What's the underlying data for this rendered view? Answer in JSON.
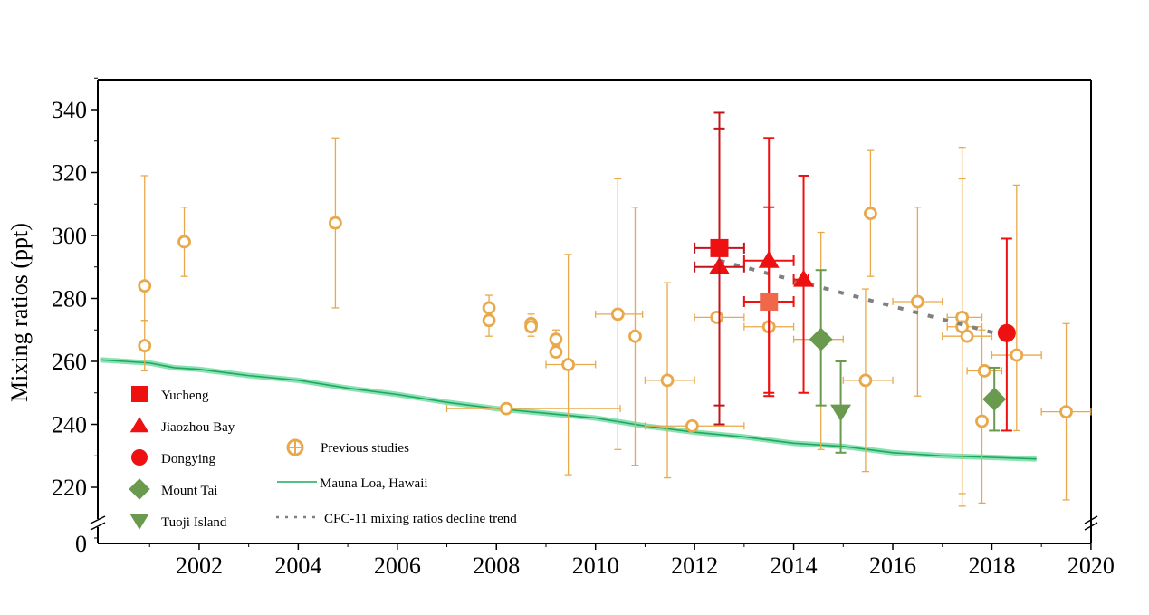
{
  "chart_data": {
    "type": "scatter",
    "title": "",
    "xlabel": "",
    "ylabel": "Mixing ratios (ppt)",
    "xlim": [
      2000,
      2020
    ],
    "ylim": [
      210,
      350
    ],
    "y_axis_break": {
      "lower_label": "0",
      "break_between": [
        0,
        210
      ]
    },
    "x_ticks": [
      2002,
      2004,
      2006,
      2008,
      2010,
      2012,
      2014,
      2016,
      2018,
      2020
    ],
    "y_ticks": [
      220,
      240,
      260,
      280,
      300,
      320,
      340
    ],
    "grid": false,
    "colors": {
      "previous": "#E9A94A",
      "previous_light": "#F3D49E",
      "red": "#EE1111",
      "dark_red": "#C0151B",
      "salmon": "#F0674A",
      "green": "#6A9A4E",
      "mauna_line": "#1FA85A",
      "mauna_band": "#6CD9A3",
      "trend": "#808080"
    },
    "legend": {
      "placement": "bottom-left",
      "items": [
        {
          "label": "Yucheng",
          "marker": "square",
          "color": "#EE1111"
        },
        {
          "label": "Jiaozhou Bay",
          "marker": "triangle-up",
          "color": "#EE1111"
        },
        {
          "label": "Dongying",
          "marker": "circle",
          "color": "#EE1111"
        },
        {
          "label": "Mount Tai",
          "marker": "diamond",
          "color": "#6A9A4E"
        },
        {
          "label": "Tuoji Island",
          "marker": "triangle-down",
          "color": "#6A9A4E"
        },
        {
          "label": "Previous studies",
          "marker": "circle-open-cross",
          "color": "#E9A94A"
        },
        {
          "label": "Mauna Loa, Hawaii",
          "marker": "line",
          "color": "#1FA85A"
        },
        {
          "label": "CFC-11 mixing ratios decline trend",
          "marker": "dotted-line",
          "color": "#808080"
        }
      ]
    },
    "series": [
      {
        "name": "Yucheng",
        "marker": "square",
        "points": [
          {
            "x": 2012.5,
            "y": 296,
            "ylo": 246,
            "yhi": 339,
            "xlo": 2012.0,
            "xhi": 2013.0,
            "color": "#EE1111"
          },
          {
            "x": 2013.5,
            "y": 279,
            "ylo": 250,
            "yhi": 309,
            "xlo": 2013.0,
            "xhi": 2014.0,
            "color": "#F0674A"
          }
        ]
      },
      {
        "name": "Jiaozhou Bay",
        "marker": "triangle-up",
        "points": [
          {
            "x": 2012.5,
            "y": 290,
            "ylo": 240,
            "yhi": 334,
            "xlo": 2012.0,
            "xhi": 2013.0
          },
          {
            "x": 2013.5,
            "y": 292,
            "ylo": 249,
            "yhi": 331,
            "xlo": 2013.0,
            "xhi": 2014.0
          },
          {
            "x": 2014.2,
            "y": 286,
            "ylo": 250,
            "yhi": 319,
            "xlo": 2014.0,
            "xhi": 2014.3
          }
        ]
      },
      {
        "name": "Dongying",
        "marker": "circle",
        "points": [
          {
            "x": 2018.3,
            "y": 269,
            "ylo": 238,
            "yhi": 299
          }
        ]
      },
      {
        "name": "Mount Tai",
        "marker": "diamond",
        "points": [
          {
            "x": 2014.55,
            "y": 267,
            "ylo": 246,
            "yhi": 289
          },
          {
            "x": 2018.05,
            "y": 248,
            "ylo": 238,
            "yhi": 258
          }
        ]
      },
      {
        "name": "Tuoji Island",
        "marker": "triangle-down",
        "points": [
          {
            "x": 2014.95,
            "y": 244,
            "ylo": 231,
            "yhi": 260
          }
        ]
      },
      {
        "name": "Previous studies",
        "marker": "circle-open",
        "points": [
          {
            "x": 2000.9,
            "y": 284,
            "ylo": 273,
            "yhi": 319
          },
          {
            "x": 2000.9,
            "y": 265,
            "ylo": 257,
            "yhi": 273
          },
          {
            "x": 2001.7,
            "y": 298,
            "ylo": 287,
            "yhi": 309
          },
          {
            "x": 2004.75,
            "y": 304,
            "ylo": 277,
            "yhi": 331
          },
          {
            "x": 2007.85,
            "y": 277,
            "ylo": 273,
            "yhi": 281
          },
          {
            "x": 2007.85,
            "y": 273,
            "ylo": 268,
            "yhi": 277
          },
          {
            "x": 2008.2,
            "y": 245,
            "xlo": 2007.0,
            "xhi": 2010.5
          },
          {
            "x": 2008.7,
            "y": 272,
            "ylo": 270,
            "yhi": 275
          },
          {
            "x": 2008.7,
            "y": 271,
            "ylo": 268,
            "yhi": 273
          },
          {
            "x": 2009.2,
            "y": 267,
            "ylo": 265,
            "yhi": 270
          },
          {
            "x": 2009.2,
            "y": 263
          },
          {
            "x": 2009.45,
            "y": 259,
            "ylo": 224,
            "yhi": 294,
            "xlo": 2009.0,
            "xhi": 2010.0
          },
          {
            "x": 2010.45,
            "y": 275,
            "ylo": 232,
            "yhi": 318,
            "xlo": 2010.0,
            "xhi": 2010.95
          },
          {
            "x": 2010.8,
            "y": 268,
            "ylo": 227,
            "yhi": 309
          },
          {
            "x": 2011.45,
            "y": 254,
            "ylo": 223,
            "yhi": 285,
            "xlo": 2011.0,
            "xhi": 2012.0
          },
          {
            "x": 2011.95,
            "y": 239.5,
            "xlo": 2011.0,
            "xhi": 2013.0
          },
          {
            "x": 2012.45,
            "y": 274,
            "xlo": 2012.0,
            "xhi": 2013.0
          },
          {
            "x": 2013.5,
            "y": 271,
            "xlo": 2013.0,
            "xhi": 2014.0
          },
          {
            "x": 2014.55,
            "y": 267,
            "ylo": 232,
            "yhi": 301,
            "xlo": 2014.0,
            "xhi": 2015.0
          },
          {
            "x": 2015.55,
            "y": 307,
            "ylo": 287,
            "yhi": 327
          },
          {
            "x": 2015.45,
            "y": 254,
            "ylo": 225,
            "yhi": 283,
            "xlo": 2015.0,
            "xhi": 2016.0
          },
          {
            "x": 2016.5,
            "y": 279,
            "ylo": 249,
            "yhi": 309,
            "xlo": 2016.0,
            "xhi": 2017.0
          },
          {
            "x": 2017.4,
            "y": 274,
            "ylo": 214,
            "yhi": 328,
            "xlo": 2017.1,
            "xhi": 2017.8
          },
          {
            "x": 2017.4,
            "y": 271,
            "ylo": 218,
            "yhi": 318,
            "xlo": 2017.1,
            "xhi": 2017.8
          },
          {
            "x": 2017.5,
            "y": 268,
            "xlo": 2017.0,
            "xhi": 2018.0
          },
          {
            "x": 2017.85,
            "y": 257,
            "xlo": 2017.5,
            "xhi": 2018.2
          },
          {
            "x": 2017.8,
            "y": 241,
            "ylo": 215,
            "yhi": 270
          },
          {
            "x": 2018.5,
            "y": 262,
            "ylo": 238,
            "yhi": 316,
            "xlo": 2018.0,
            "xhi": 2019.0
          },
          {
            "x": 2019.5,
            "y": 244,
            "ylo": 216,
            "yhi": 272,
            "xlo": 2019.0,
            "xhi": 2020.0
          }
        ]
      },
      {
        "name": "Mauna Loa, Hawaii",
        "type": "line",
        "x": [
          2000.0,
          2000.5,
          2001.0,
          2001.5,
          2002.0,
          2003.0,
          2004.0,
          2005.0,
          2006.0,
          2007.0,
          2008.0,
          2009.0,
          2010.0,
          2011.0,
          2012.0,
          2013.0,
          2014.0,
          2015.0,
          2016.0,
          2017.0,
          2018.0,
          2018.9
        ],
        "y": [
          260.5,
          260,
          259.5,
          258,
          257.5,
          255.5,
          254,
          251.5,
          249.5,
          247,
          245,
          243.5,
          242,
          239.5,
          237.5,
          236,
          234,
          233,
          231,
          230,
          229.5,
          229
        ]
      },
      {
        "name": "CFC-11 mixing ratios decline trend",
        "type": "line",
        "style": "dotted",
        "x": [
          2012.5,
          2018.3
        ],
        "y": [
          292,
          268
        ]
      }
    ]
  }
}
